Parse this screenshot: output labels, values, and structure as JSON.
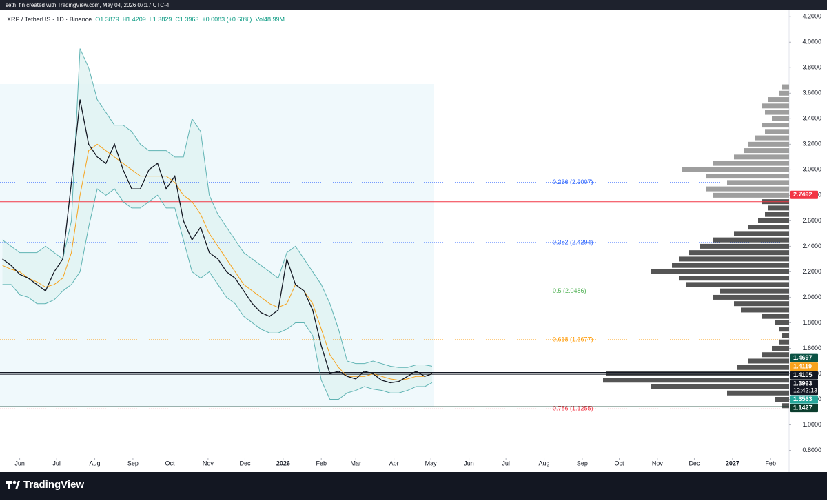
{
  "header": {
    "byline": "seth_fin created with TradingView.com, May 04, 2026 07:17 UTC-4",
    "footer_brand": "TradingView"
  },
  "chart_data": {
    "type": "line",
    "legend_text": {
      "symbol": "XRP / TetherUS · 1D · Binance",
      "items": [
        "O1.3879",
        "H1.4209",
        "L1.3829",
        "C1.3963",
        "+0.0083 (+0.60%)",
        "Vol48.99M"
      ]
    },
    "x": [
      -14,
      -7,
      0,
      7,
      14,
      21,
      28,
      35,
      42,
      49,
      56,
      63,
      70,
      77,
      84,
      91,
      98,
      105,
      112,
      119,
      126,
      133,
      140,
      147,
      154,
      161,
      168,
      175,
      182,
      189,
      196,
      203,
      210,
      217,
      224,
      231,
      238,
      245,
      252,
      259,
      266,
      273,
      280,
      287,
      294,
      301,
      308,
      315,
      322,
      329,
      335
    ],
    "series": [
      {
        "color": "#131722",
        "values": [
          2.3,
          2.25,
          2.18,
          2.15,
          2.1,
          2.05,
          2.2,
          2.3,
          2.9,
          3.55,
          3.2,
          3.1,
          3.05,
          3.2,
          3.0,
          2.85,
          2.85,
          3.0,
          3.05,
          2.85,
          2.95,
          2.6,
          2.45,
          2.55,
          2.35,
          2.3,
          2.2,
          2.15,
          2.05,
          1.95,
          1.88,
          1.85,
          1.9,
          2.3,
          2.1,
          2.05,
          1.9,
          1.62,
          1.4,
          1.42,
          1.38,
          1.36,
          1.42,
          1.4,
          1.35,
          1.33,
          1.34,
          1.38,
          1.42,
          1.38,
          1.4
        ]
      },
      {
        "color": "#f7a21b",
        "values": [
          2.25,
          2.22,
          2.2,
          2.15,
          2.12,
          2.08,
          2.1,
          2.15,
          2.35,
          2.8,
          3.15,
          3.2,
          3.15,
          3.1,
          3.05,
          3.0,
          2.95,
          2.95,
          2.95,
          2.95,
          2.9,
          2.8,
          2.75,
          2.65,
          2.5,
          2.4,
          2.3,
          2.2,
          2.1,
          2.05,
          2.0,
          1.95,
          1.92,
          1.95,
          2.1,
          2.05,
          1.95,
          1.75,
          1.55,
          1.45,
          1.38,
          1.38,
          1.38,
          1.4,
          1.38,
          1.36,
          1.35,
          1.36,
          1.38,
          1.38,
          1.4
        ]
      },
      {
        "color": "#5fb3b3",
        "values": [
          2.45,
          2.4,
          2.35,
          2.35,
          2.35,
          2.4,
          2.35,
          2.3,
          2.6,
          3.95,
          3.8,
          3.55,
          3.45,
          3.35,
          3.35,
          3.3,
          3.2,
          3.15,
          3.15,
          3.15,
          3.1,
          3.1,
          3.4,
          3.3,
          2.8,
          2.65,
          2.55,
          2.45,
          2.35,
          2.3,
          2.25,
          2.2,
          2.15,
          2.35,
          2.4,
          2.3,
          2.2,
          2.1,
          1.95,
          1.75,
          1.5,
          1.48,
          1.48,
          1.5,
          1.48,
          1.46,
          1.45,
          1.45,
          1.47,
          1.47,
          1.46
        ]
      },
      {
        "color": "#5fb3b3",
        "values": [
          2.1,
          2.1,
          2.02,
          2.0,
          1.95,
          1.95,
          1.98,
          2.05,
          2.1,
          2.2,
          2.55,
          2.85,
          2.8,
          2.85,
          2.75,
          2.7,
          2.7,
          2.75,
          2.8,
          2.7,
          2.7,
          2.45,
          2.2,
          2.15,
          2.2,
          2.1,
          2.0,
          1.95,
          1.85,
          1.8,
          1.75,
          1.72,
          1.72,
          1.75,
          1.8,
          1.8,
          1.7,
          1.35,
          1.2,
          1.2,
          1.25,
          1.27,
          1.3,
          1.28,
          1.27,
          1.25,
          1.25,
          1.27,
          1.3,
          1.3,
          1.33
        ]
      }
    ],
    "band_fill": "#e0f2f1",
    "xlim": [
      -16,
      625
    ],
    "xticks": [
      {
        "value": 0,
        "label": "Jun"
      },
      {
        "value": 30,
        "label": "Jul"
      },
      {
        "value": 61,
        "label": "Aug"
      },
      {
        "value": 92,
        "label": "Sep"
      },
      {
        "value": 122,
        "label": "Oct"
      },
      {
        "value": 153,
        "label": "Nov"
      },
      {
        "value": 183,
        "label": "Dec"
      },
      {
        "value": 214,
        "label": "2026"
      },
      {
        "value": 245,
        "label": "Feb"
      },
      {
        "value": 273,
        "label": "Mar"
      },
      {
        "value": 304,
        "label": "Apr"
      },
      {
        "value": 334,
        "label": "May"
      },
      {
        "value": 365,
        "label": "Jun"
      },
      {
        "value": 395,
        "label": "Jul"
      },
      {
        "value": 426,
        "label": "Aug"
      },
      {
        "value": 457,
        "label": "Sep"
      },
      {
        "value": 487,
        "label": "Oct"
      },
      {
        "value": 518,
        "label": "Nov"
      },
      {
        "value": 548,
        "label": "Dec"
      },
      {
        "value": 579,
        "label": "2027"
      },
      {
        "value": 610,
        "label": "Feb"
      }
    ],
    "ylim": [
      0.63,
      4.25
    ],
    "yticks": [
      {
        "value": 4.2,
        "label": "4.2000"
      },
      {
        "value": 4.0,
        "label": "4.0000"
      },
      {
        "value": 3.8,
        "label": "3.8000"
      },
      {
        "value": 3.6,
        "label": "3.6000"
      },
      {
        "value": 3.4,
        "label": "3.4000"
      },
      {
        "value": 3.2,
        "label": "3.2000"
      },
      {
        "value": 3.0,
        "label": "3.0000"
      },
      {
        "value": 2.8,
        "label": "2.8000"
      },
      {
        "value": 2.6,
        "label": "2.6000"
      },
      {
        "value": 2.4,
        "label": "2.4000"
      },
      {
        "value": 2.2,
        "label": "2.2000"
      },
      {
        "value": 2.0,
        "label": "2.0000"
      },
      {
        "value": 1.8,
        "label": "1.8000"
      },
      {
        "value": 1.6,
        "label": "1.6000"
      },
      {
        "value": 1.4,
        "label": "1.4000"
      },
      {
        "value": 1.2,
        "label": "1.2000"
      },
      {
        "value": 1.0,
        "label": "1.0000"
      },
      {
        "value": 0.8,
        "label": "0.8000"
      }
    ],
    "fib_levels": [
      {
        "label": "0.236 (2.9007)",
        "value": 2.9007,
        "color": "#2962ff"
      },
      {
        "label": "0.382 (2.4294)",
        "value": 2.4294,
        "color": "#2962ff"
      },
      {
        "label": "0.5 (2.0486)",
        "value": 2.0486,
        "color": "#4caf50"
      },
      {
        "label": "0.618 (1.6677)",
        "value": 1.6677,
        "color": "#ff9800"
      },
      {
        "label": "0.786 (1.1255)",
        "value": 1.1255,
        "color": "#f23645"
      }
    ],
    "price_lines": [
      {
        "value": 2.7492,
        "color": "#f23645"
      },
      {
        "value": 1.4105,
        "color": "#131722"
      },
      {
        "value": 1.3963,
        "color": "#131722"
      },
      {
        "value": 1.1427,
        "color": "#0b3d2e"
      }
    ],
    "price_labels": [
      {
        "value": 2.7492,
        "color": "#f23645"
      },
      {
        "value": 1.4697,
        "color": "#0b5345"
      },
      {
        "value": 1.4119,
        "color": "#f7a21b"
      },
      {
        "value": 1.4105,
        "color": "#131722"
      },
      {
        "value": 1.3963,
        "color": "#131722",
        "countdown": "12:42:13"
      },
      {
        "value": 1.3563,
        "color": "#26a69a"
      },
      {
        "value": 1.1427,
        "color": "#0b3d2e"
      }
    ],
    "volume_profile": [
      {
        "color": "#9e9e9e",
        "levels": [
          3.65,
          3.6,
          3.55,
          3.5,
          3.45,
          3.4,
          3.35,
          3.3,
          3.25,
          3.2,
          3.15,
          3.1,
          3.05,
          3.0,
          2.95,
          2.9,
          2.85,
          2.8
        ],
        "values": [
          10,
          15,
          30,
          40,
          35,
          25,
          40,
          35,
          50,
          60,
          65,
          80,
          110,
          155,
          120,
          90,
          120,
          110
        ]
      },
      {
        "color": "#555555",
        "levels": [
          2.75,
          2.7,
          2.65,
          2.6,
          2.55,
          2.5,
          2.45,
          2.4,
          2.35,
          2.3,
          2.25,
          2.2,
          2.15,
          2.1,
          2.05,
          2.0,
          1.95,
          1.9,
          1.85,
          1.8,
          1.75,
          1.7,
          1.65,
          1.6,
          1.55,
          1.5,
          1.45,
          1.4,
          1.35,
          1.3,
          1.25,
          1.2,
          1.15
        ],
        "values": [
          40,
          30,
          35,
          45,
          60,
          80,
          110,
          130,
          145,
          160,
          170,
          200,
          160,
          150,
          100,
          110,
          80,
          70,
          40,
          20,
          15,
          10,
          15,
          25,
          40,
          60,
          75,
          265,
          270,
          200,
          90,
          20,
          10
        ]
      }
    ]
  }
}
